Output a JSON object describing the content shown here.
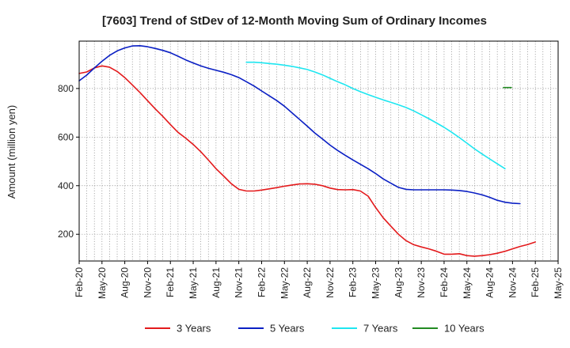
{
  "chart_data": {
    "type": "line",
    "title": "[7603]  Trend of StDev of 12-Month Moving Sum of Ordinary Incomes",
    "xlabel": "",
    "ylabel": "Amount (million yen)",
    "x_start_index": 0,
    "x_end_index": 20,
    "ylim": [
      90,
      995
    ],
    "yticks": [
      200,
      400,
      600,
      800
    ],
    "xtick_labels": [
      "Feb-20",
      "May-20",
      "Aug-20",
      "Nov-20",
      "Feb-21",
      "May-21",
      "Aug-21",
      "Nov-21",
      "Feb-22",
      "May-22",
      "Aug-22",
      "Nov-22",
      "Feb-23",
      "May-23",
      "Aug-23",
      "Nov-23",
      "Feb-24",
      "May-24",
      "Aug-24",
      "Nov-24",
      "Feb-25",
      "May-25"
    ],
    "grid": true,
    "legend_position": "bottom",
    "series": [
      {
        "name": "3 Years",
        "color": "#e31a1c",
        "points": [
          [
            0,
            862
          ],
          [
            0.33,
            868
          ],
          [
            0.67,
            885
          ],
          [
            1,
            893
          ],
          [
            1.33,
            888
          ],
          [
            1.67,
            870
          ],
          [
            2,
            845
          ],
          [
            2.33,
            815
          ],
          [
            2.67,
            783
          ],
          [
            3,
            750
          ],
          [
            3.33,
            717
          ],
          [
            3.67,
            685
          ],
          [
            4,
            652
          ],
          [
            4.33,
            620
          ],
          [
            4.67,
            596
          ],
          [
            5,
            570
          ],
          [
            5.33,
            540
          ],
          [
            5.67,
            505
          ],
          [
            6,
            470
          ],
          [
            6.33,
            440
          ],
          [
            6.67,
            408
          ],
          [
            7,
            385
          ],
          [
            7.33,
            378
          ],
          [
            7.67,
            378
          ],
          [
            8,
            382
          ],
          [
            8.33,
            387
          ],
          [
            8.67,
            392
          ],
          [
            9,
            398
          ],
          [
            9.33,
            403
          ],
          [
            9.67,
            407
          ],
          [
            10,
            408
          ],
          [
            10.33,
            406
          ],
          [
            10.67,
            400
          ],
          [
            11,
            390
          ],
          [
            11.33,
            384
          ],
          [
            11.67,
            383
          ],
          [
            12,
            384
          ],
          [
            12.33,
            378
          ],
          [
            12.67,
            357
          ],
          [
            13,
            310
          ],
          [
            13.33,
            268
          ],
          [
            13.67,
            233
          ],
          [
            14,
            200
          ],
          [
            14.33,
            174
          ],
          [
            14.67,
            157
          ],
          [
            15,
            148
          ],
          [
            15.33,
            140
          ],
          [
            15.67,
            130
          ],
          [
            16,
            118
          ],
          [
            16.33,
            118
          ],
          [
            16.67,
            120
          ],
          [
            17,
            112
          ],
          [
            17.33,
            110
          ],
          [
            17.67,
            112
          ],
          [
            18,
            116
          ],
          [
            18.33,
            122
          ],
          [
            18.67,
            130
          ],
          [
            19,
            140
          ],
          [
            19.33,
            150
          ],
          [
            19.67,
            158
          ],
          [
            20,
            168
          ]
        ]
      },
      {
        "name": "5 Years",
        "color": "#0a1fc4",
        "points": [
          [
            0,
            832
          ],
          [
            0.33,
            855
          ],
          [
            0.67,
            885
          ],
          [
            1,
            912
          ],
          [
            1.33,
            936
          ],
          [
            1.67,
            955
          ],
          [
            2,
            967
          ],
          [
            2.33,
            975
          ],
          [
            2.67,
            976
          ],
          [
            3,
            972
          ],
          [
            3.33,
            965
          ],
          [
            3.67,
            957
          ],
          [
            4,
            947
          ],
          [
            4.33,
            933
          ],
          [
            4.67,
            918
          ],
          [
            5,
            905
          ],
          [
            5.33,
            893
          ],
          [
            5.67,
            883
          ],
          [
            6,
            875
          ],
          [
            6.33,
            867
          ],
          [
            6.67,
            857
          ],
          [
            7,
            845
          ],
          [
            7.33,
            828
          ],
          [
            7.67,
            810
          ],
          [
            8,
            790
          ],
          [
            8.33,
            770
          ],
          [
            8.67,
            750
          ],
          [
            9,
            727
          ],
          [
            9.33,
            700
          ],
          [
            9.67,
            672
          ],
          [
            10,
            645
          ],
          [
            10.33,
            617
          ],
          [
            10.67,
            592
          ],
          [
            11,
            567
          ],
          [
            11.33,
            545
          ],
          [
            11.67,
            525
          ],
          [
            12,
            506
          ],
          [
            12.33,
            488
          ],
          [
            12.67,
            470
          ],
          [
            13,
            450
          ],
          [
            13.33,
            428
          ],
          [
            13.67,
            410
          ],
          [
            14,
            393
          ],
          [
            14.33,
            385
          ],
          [
            14.67,
            383
          ],
          [
            15,
            383
          ],
          [
            15.33,
            383
          ],
          [
            15.67,
            383
          ],
          [
            16,
            383
          ],
          [
            16.33,
            382
          ],
          [
            16.67,
            380
          ],
          [
            17,
            376
          ],
          [
            17.33,
            370
          ],
          [
            17.67,
            362
          ],
          [
            18,
            352
          ],
          [
            18.33,
            340
          ],
          [
            18.67,
            332
          ],
          [
            19,
            328
          ],
          [
            19.33,
            326
          ]
        ]
      },
      {
        "name": "7 Years",
        "color": "#1ee6f0",
        "points": [
          [
            7.33,
            908
          ],
          [
            7.67,
            908
          ],
          [
            8,
            906
          ],
          [
            8.33,
            903
          ],
          [
            8.67,
            900
          ],
          [
            9,
            896
          ],
          [
            9.33,
            891
          ],
          [
            9.67,
            885
          ],
          [
            10,
            878
          ],
          [
            10.33,
            868
          ],
          [
            10.67,
            856
          ],
          [
            11,
            842
          ],
          [
            11.33,
            828
          ],
          [
            11.67,
            815
          ],
          [
            12,
            800
          ],
          [
            12.33,
            787
          ],
          [
            12.67,
            775
          ],
          [
            13,
            764
          ],
          [
            13.33,
            753
          ],
          [
            13.67,
            743
          ],
          [
            14,
            733
          ],
          [
            14.33,
            722
          ],
          [
            14.67,
            708
          ],
          [
            15,
            692
          ],
          [
            15.33,
            676
          ],
          [
            15.67,
            658
          ],
          [
            16,
            640
          ],
          [
            16.33,
            620
          ],
          [
            16.67,
            598
          ],
          [
            17,
            575
          ],
          [
            17.33,
            552
          ],
          [
            17.67,
            530
          ],
          [
            18,
            510
          ],
          [
            18.33,
            490
          ],
          [
            18.67,
            470
          ]
        ]
      },
      {
        "name": "10 Years",
        "color": "#228b22",
        "points": [
          [
            18.6,
            804
          ],
          [
            18.95,
            804
          ]
        ]
      }
    ]
  }
}
